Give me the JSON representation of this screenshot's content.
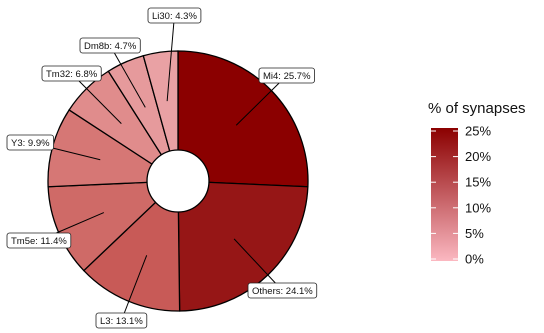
{
  "chart_data": {
    "type": "pie",
    "style": "donut",
    "slices": [
      {
        "label": "Mi4: 25.7%",
        "name": "Mi4",
        "value": 25.7,
        "color": "#8b0000"
      },
      {
        "label": "Others: 24.1%",
        "name": "Others",
        "value": 24.1,
        "color": "#961616"
      },
      {
        "label": "L3: 13.1%",
        "name": "L3",
        "value": 13.1,
        "color": "#c85a57"
      },
      {
        "label": "Tm5e: 11.4%",
        "name": "Tm5e",
        "value": 11.4,
        "color": "#cf6a67"
      },
      {
        "label": "Y3: 9.9%",
        "name": "Y3",
        "value": 9.9,
        "color": "#d67775"
      },
      {
        "label": "Tm32: 6.8%",
        "name": "Tm32",
        "value": 6.8,
        "color": "#e08c8c"
      },
      {
        "label": "Dm8b: 4.7%",
        "name": "Dm8b",
        "value": 4.7,
        "color": "#e69a9c"
      },
      {
        "label": "Li30: 4.3%",
        "name": "Li30",
        "value": 4.3,
        "color": "#e9a1a4"
      }
    ],
    "legend": {
      "title": "% of synapses",
      "ticks": [
        "25%",
        "20%",
        "15%",
        "10%",
        "5%",
        "0%"
      ],
      "range": [
        0,
        25
      ],
      "color_low": "#fbb8c1",
      "color_high": "#8b0000"
    }
  }
}
